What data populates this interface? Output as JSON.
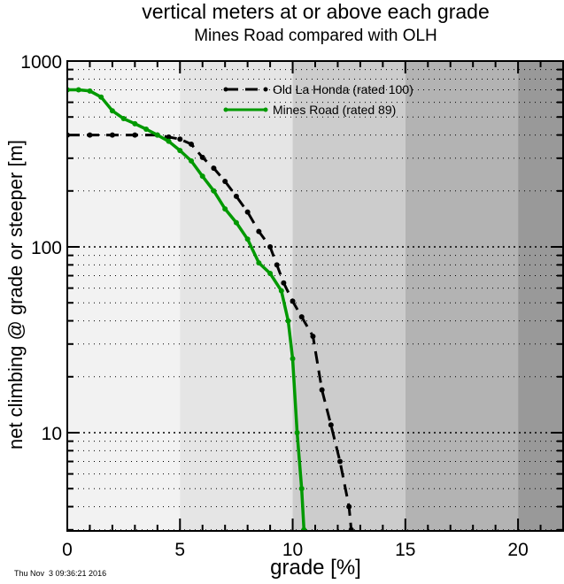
{
  "chart_data": {
    "type": "line",
    "title": "vertical meters at or above each grade",
    "subtitle": "Mines Road compared with OLH",
    "xlabel": "grade [%]",
    "ylabel": "net climbing @ grade or steeper [m]",
    "xlim": [
      0,
      22
    ],
    "ylim": [
      3,
      1000
    ],
    "yscale": "log",
    "xticks": [
      0,
      5,
      10,
      15,
      20
    ],
    "yticks": [
      10,
      100,
      1000
    ],
    "grid": true,
    "legend_position": "upper right (inside)",
    "background_bands": [
      {
        "from": 0,
        "to": 5,
        "color": "#f2f2f2"
      },
      {
        "from": 5,
        "to": 10,
        "color": "#e5e5e5"
      },
      {
        "from": 10,
        "to": 15,
        "color": "#cccccc"
      },
      {
        "from": 15,
        "to": 20,
        "color": "#b3b3b3"
      },
      {
        "from": 20,
        "to": 22,
        "color": "#999999"
      }
    ],
    "series": [
      {
        "name": "Old La Honda (rated 100)",
        "color": "#000000",
        "style": "dashed with points",
        "x": [
          0,
          1,
          2,
          3,
          4,
          4.5,
          5,
          5.5,
          6,
          6.5,
          7,
          7.5,
          8,
          8.5,
          9,
          9.3,
          9.6,
          10,
          10.4,
          10.9,
          11.3,
          11.7,
          12.1,
          12.5,
          12.6
        ],
        "y": [
          400,
          400,
          400,
          400,
          400,
          390,
          380,
          357,
          303,
          265,
          225,
          187,
          154,
          121,
          100,
          80,
          64,
          51,
          42,
          33,
          17,
          11,
          7,
          4,
          3
        ]
      },
      {
        "name": "Mines Road (rated 89)",
        "color": "#009900",
        "style": "solid with points",
        "x": [
          0,
          0.5,
          1,
          1.5,
          2,
          2.5,
          3,
          3.5,
          4,
          4.5,
          5,
          5.5,
          6,
          6.5,
          7,
          7.5,
          8,
          8.5,
          9,
          9.5,
          9.8,
          10,
          10.2,
          10.4,
          10.5
        ],
        "y": [
          700,
          700,
          690,
          640,
          540,
          490,
          460,
          430,
          400,
          370,
          330,
          290,
          240,
          200,
          160,
          135,
          110,
          82,
          72,
          58,
          40,
          25,
          10,
          5,
          3
        ]
      }
    ]
  },
  "labels": {
    "title": "vertical meters at or above each grade",
    "subtitle": "Mines Road compared with OLH",
    "xlabel": "grade [%]",
    "ylabel": "net climbing @ grade or steeper [m]",
    "timestamp": "Thu Nov  3 09:36:21 2016",
    "xtick_labels": [
      "0",
      "5",
      "10",
      "15",
      "20"
    ],
    "ytick_labels": [
      "1000",
      "100",
      "10"
    ],
    "legend": [
      "Old La Honda (rated 100)",
      "Mines Road (rated 89)"
    ]
  }
}
